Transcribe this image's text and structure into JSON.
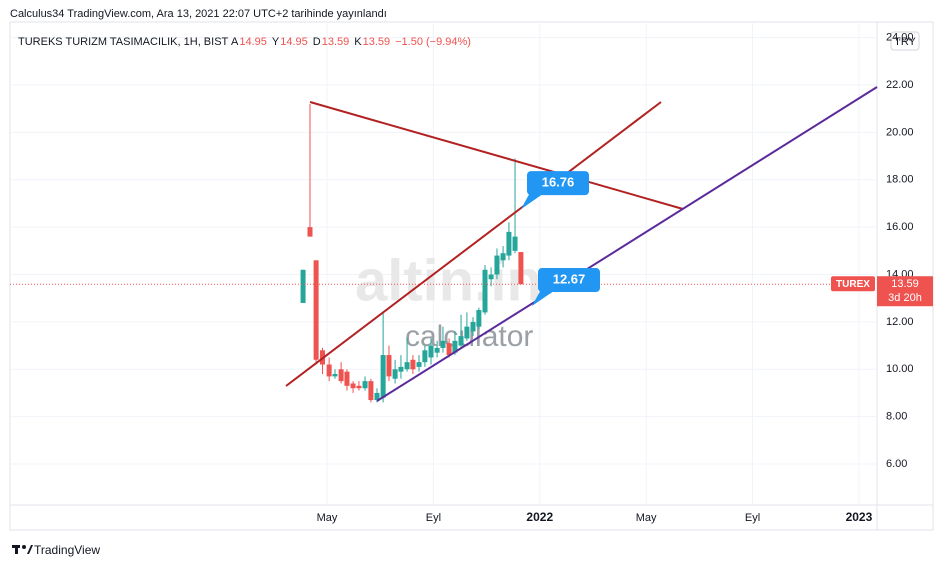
{
  "header": "Calculus34 TradingView.com, Ara 13, 2021 22:07 UTC+2 tarihinde yayınlandı",
  "chart_data": {
    "type": "candlestick",
    "symbol_title": "TUREKS TURIZM TASIMACILIK, 1H, BIST",
    "ohlc_legend": {
      "open_label": "A",
      "open": 14.95,
      "high_label": "Y",
      "high": 14.95,
      "low_label": "D",
      "low": 13.59,
      "close_label": "K",
      "close": 13.59,
      "change": "−1.50 (−9.94%)"
    },
    "currency": "TRY",
    "ticker": "TUREX",
    "last_price": 13.59,
    "countdown": "3d 20h",
    "price_labels": [
      16.76,
      12.67
    ],
    "watermark": [
      "altin.in",
      "calculator"
    ],
    "up_color": "#26a69a",
    "down_color": "#ef5350",
    "x": [
      3.1,
      3.36,
      3.59,
      3.83,
      4.08,
      4.3,
      4.53,
      4.75,
      4.98,
      5.2,
      5.43,
      5.65,
      5.88,
      6.11,
      6.33,
      6.56,
      6.78,
      7.01,
      7.23,
      7.46,
      7.68,
      7.91,
      8.14,
      8.36,
      8.59,
      8.81,
      9.04,
      9.26,
      9.49,
      9.71,
      9.94,
      10.17,
      10.39,
      10.62,
      10.84,
      11.07,
      11.29
    ],
    "open": [
      12.8,
      16.0,
      14.6,
      10.8,
      10.2,
      9.7,
      10.0,
      9.9,
      9.4,
      9.3,
      9.2,
      9.5,
      8.7,
      8.8,
      10.6,
      9.6,
      9.9,
      10.0,
      10.4,
      10.1,
      10.3,
      10.5,
      10.7,
      10.9,
      11.1,
      10.7,
      11.0,
      11.3,
      11.6,
      11.8,
      12.4,
      13.8,
      14.0,
      14.6,
      14.8,
      15.0,
      14.95
    ],
    "high": [
      14.2,
      21.2,
      14.6,
      10.9,
      10.5,
      10.0,
      10.3,
      10.0,
      9.5,
      9.5,
      9.7,
      9.6,
      9.2,
      12.4,
      11.0,
      10.4,
      10.6,
      11.3,
      10.6,
      10.6,
      11.0,
      11.3,
      11.2,
      11.8,
      11.3,
      11.6,
      12.3,
      12.4,
      12.2,
      12.6,
      14.4,
      14.3,
      15.1,
      15.2,
      16.2,
      18.9,
      14.95
    ],
    "low": [
      12.8,
      15.6,
      10.2,
      9.8,
      9.5,
      9.6,
      9.4,
      9.1,
      9.0,
      9.1,
      9.1,
      8.6,
      8.6,
      8.6,
      9.5,
      9.4,
      9.6,
      9.9,
      9.8,
      9.9,
      10.1,
      10.2,
      10.5,
      10.7,
      10.5,
      10.6,
      10.9,
      11.2,
      11.4,
      11.7,
      12.3,
      13.5,
      13.8,
      14.3,
      14.6,
      14.9,
      13.59
    ],
    "close": [
      14.2,
      15.6,
      10.4,
      10.2,
      9.7,
      9.8,
      9.5,
      9.3,
      9.2,
      9.2,
      9.5,
      8.7,
      9.0,
      10.6,
      9.7,
      10.0,
      10.1,
      10.3,
      10.0,
      10.3,
      10.8,
      11.0,
      10.9,
      11.2,
      10.6,
      11.2,
      11.4,
      11.8,
      12.0,
      12.5,
      14.2,
      14.0,
      14.8,
      14.9,
      15.8,
      15.6,
      13.59
    ],
    "xlim": [
      -7.92,
      24.68
    ],
    "xticks": [
      {
        "value": 4,
        "label": "May"
      },
      {
        "value": 8,
        "label": "Eyl"
      },
      {
        "value": 12,
        "label": "2022"
      },
      {
        "value": 16,
        "label": "May"
      },
      {
        "value": 20,
        "label": "Eyl"
      },
      {
        "value": 24,
        "label": "2023"
      }
    ],
    "ylim": [
      4.27,
      24.66
    ],
    "yticks": [
      {
        "value": 6,
        "label": "6.00"
      },
      {
        "value": 8,
        "label": "8.00"
      },
      {
        "value": 10,
        "label": "10.00"
      },
      {
        "value": 12,
        "label": "12.00"
      },
      {
        "value": 14,
        "label": "14.00"
      },
      {
        "value": 16,
        "label": "16.00"
      },
      {
        "value": 18,
        "label": "18.00"
      },
      {
        "value": 20,
        "label": "20.00"
      },
      {
        "value": 22,
        "label": "22.00"
      },
      {
        "value": 24,
        "label": "24.00"
      }
    ],
    "grid": true
  },
  "footer": "TradingView"
}
